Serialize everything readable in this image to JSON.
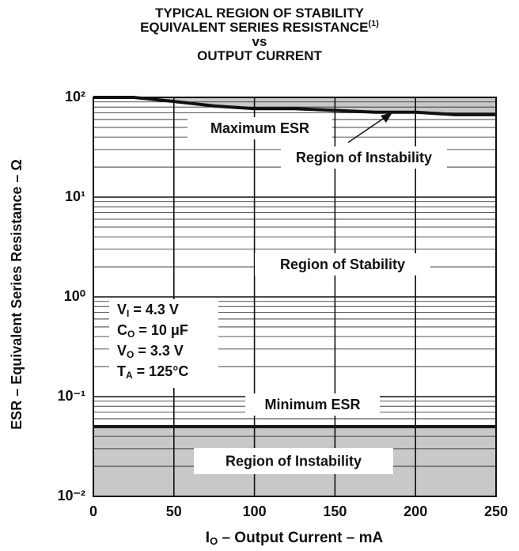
{
  "chart_data": {
    "type": "line",
    "title": [
      "TYPICAL REGION OF STABILITY",
      "EQUIVALENT SERIES RESISTANCE",
      "vs",
      "OUTPUT CURRENT"
    ],
    "title_note": "(1)",
    "x_label": {
      "symbol": "I",
      "subscript": "O",
      "text": " – Output Current – mA"
    },
    "y_label": "ESR – Equivalent Series Resistance – Ω",
    "x": [
      0,
      25,
      50,
      75,
      100,
      125,
      150,
      175,
      200,
      225,
      250
    ],
    "series": [
      {
        "color": "#111111",
        "values": [
          100,
          100,
          91,
          82,
          77,
          77,
          74,
          71,
          71,
          67,
          67
        ]
      },
      {
        "color": "#111111",
        "values": [
          0.05,
          0.05,
          0.05,
          0.05,
          0.05,
          0.05,
          0.05,
          0.05,
          0.05,
          0.05,
          0.05
        ]
      }
    ],
    "xlim": [
      0,
      250
    ],
    "xticks": [
      0,
      50,
      100,
      150,
      200,
      250
    ],
    "ylim": [
      0.01,
      100
    ],
    "yticks": [
      {
        "value": 0.01,
        "label": "10⁻²"
      },
      {
        "value": 0.1,
        "label": "10⁻¹"
      },
      {
        "value": 1,
        "label": "10⁰"
      },
      {
        "value": 10,
        "label": "10¹"
      },
      {
        "value": 100,
        "label": "10²"
      }
    ],
    "log_y": true,
    "grid": true,
    "shade_color": "#c8c8c8",
    "annotations": [
      "Maximum ESR",
      "Region of Instability",
      "Region of Stability",
      "Minimum ESR",
      "Region of Instability"
    ],
    "conditions": [
      {
        "symbol": "V",
        "subscript": "I",
        "text": " = 4.3 V"
      },
      {
        "symbol": "C",
        "subscript": "O",
        "text": " = 10 μF"
      },
      {
        "symbol": "V",
        "subscript": "O",
        "text": " = 3.3 V"
      },
      {
        "symbol": "T",
        "subscript": "A",
        "text": " = 125°C"
      }
    ]
  }
}
